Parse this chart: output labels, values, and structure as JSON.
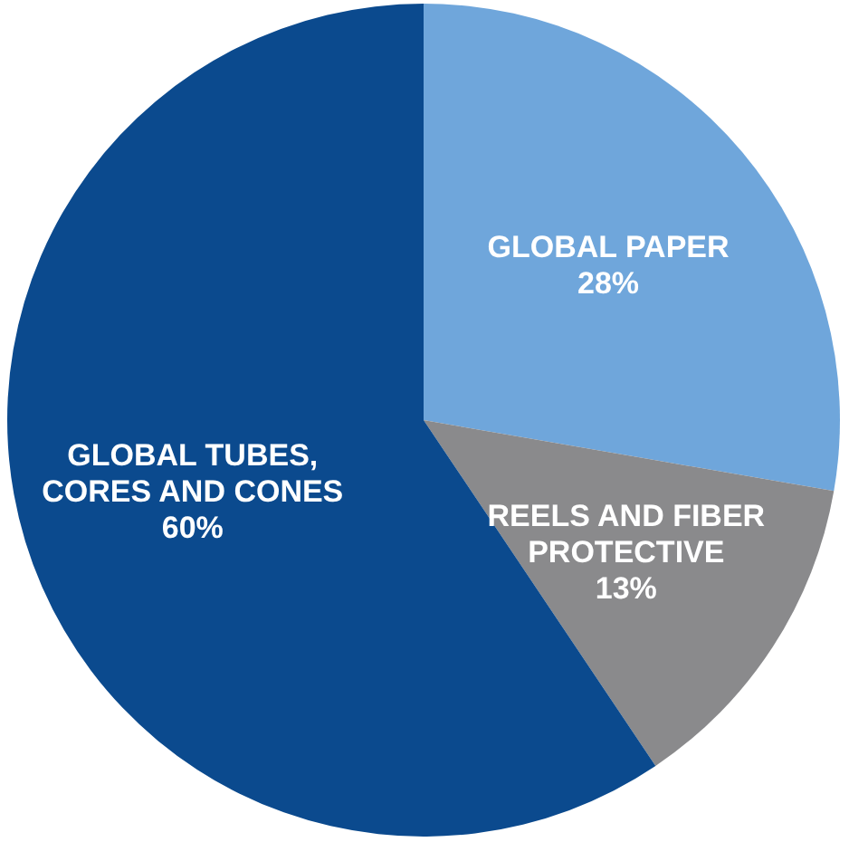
{
  "chart_data": {
    "type": "pie",
    "categories": [
      "GLOBAL PAPER",
      "REELS AND FIBER PROTECTIVE",
      "GLOBAL TUBES, CORES AND CONES"
    ],
    "values": [
      28,
      13,
      60
    ],
    "value_labels": [
      "28%",
      "13%",
      "60%"
    ],
    "colors": [
      "#6fa6db",
      "#8a8a8c",
      "#0b4a8e"
    ],
    "legend": false
  }
}
